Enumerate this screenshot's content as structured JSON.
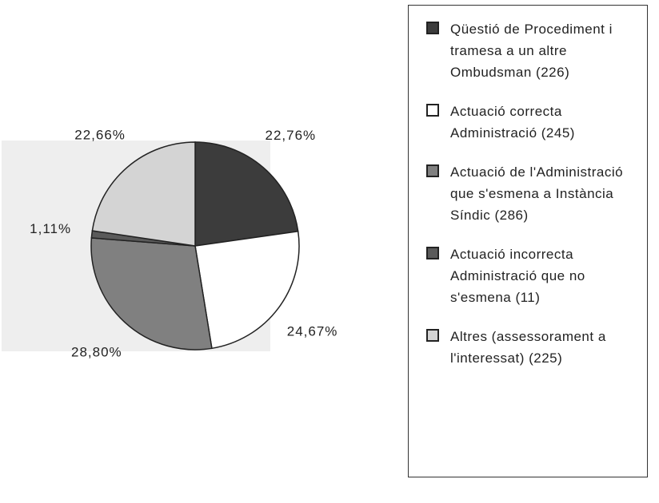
{
  "chart_data": {
    "type": "pie",
    "categories": [
      "Qüestió de Procediment i tramesa a un altre Ombudsman (226)",
      "Actuació correcta Administració (245)",
      "Actuació de l'Administració que s'esmena a Instància Síndic (286)",
      "Actuació incorrecta Administració que no s'esmena (11)",
      "Altres (assessorament a l'interessat) (225)"
    ],
    "values": [
      22.76,
      24.67,
      28.8,
      1.11,
      22.66
    ],
    "value_labels": [
      "22,76%",
      "24,67%",
      "28,80%",
      "1,11%",
      "22,66%"
    ],
    "colors": [
      "#3c3c3c",
      "#ffffff",
      "#808080",
      "#5a5a5a",
      "#d4d4d4"
    ],
    "legend": "right"
  }
}
